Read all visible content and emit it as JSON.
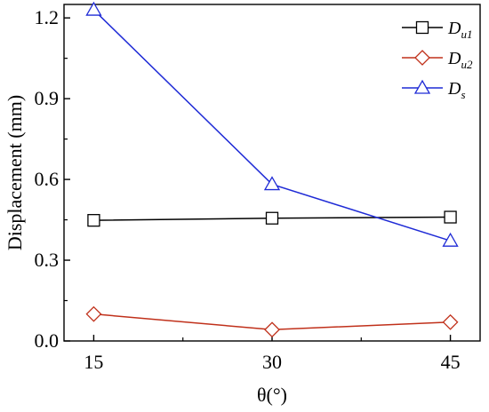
{
  "chart_data": {
    "type": "line",
    "x": [
      15,
      30,
      45
    ],
    "xlabel": "θ(°)",
    "ylabel": "Displacement (mm)",
    "xlim": [
      12.5,
      47.5
    ],
    "ylim": [
      0.0,
      1.25
    ],
    "xticks": [
      "15",
      "30",
      "45"
    ],
    "yticks": [
      "0.0",
      "0.3",
      "0.6",
      "0.9",
      "1.2"
    ],
    "grid": false,
    "legend_position": "top-right",
    "series": [
      {
        "name": "Du1",
        "label_main": "D",
        "label_sub": "u1",
        "color": "#000000",
        "marker": "square",
        "values": [
          0.448,
          0.456,
          0.46
        ]
      },
      {
        "name": "Du2",
        "label_main": "D",
        "label_sub": "u2",
        "color": "#c0301a",
        "marker": "diamond",
        "values": [
          0.1,
          0.042,
          0.07
        ]
      },
      {
        "name": "Ds",
        "label_main": "D",
        "label_sub": "s",
        "color": "#1f2bd6",
        "marker": "triangle",
        "values": [
          1.23,
          0.582,
          0.372
        ]
      }
    ]
  }
}
